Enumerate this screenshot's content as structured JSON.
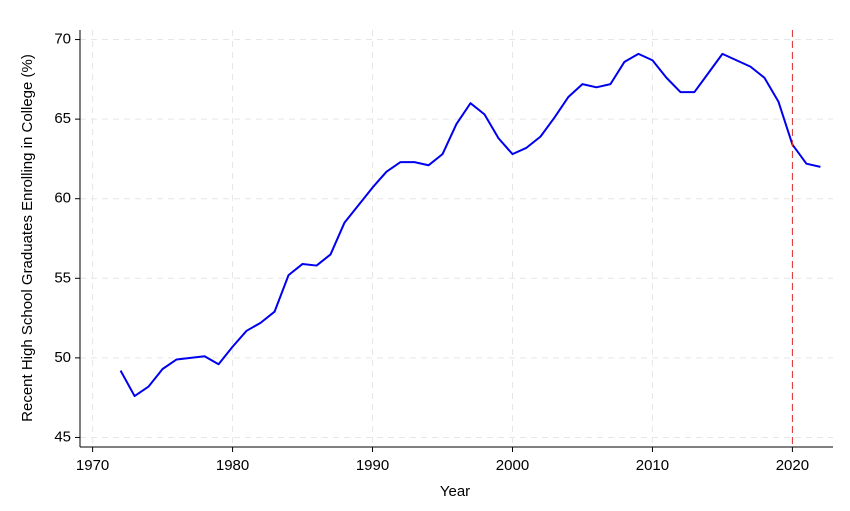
{
  "chart_data": {
    "type": "line",
    "x_label": "Year",
    "y_label": "Recent High School Graduates Enrolling in College (%)",
    "x": [
      1972,
      1973,
      1974,
      1975,
      1976,
      1977,
      1978,
      1979,
      1980,
      1981,
      1982,
      1983,
      1984,
      1985,
      1986,
      1987,
      1988,
      1989,
      1990,
      1991,
      1992,
      1993,
      1994,
      1995,
      1996,
      1997,
      1998,
      1999,
      2000,
      2001,
      2002,
      2003,
      2004,
      2005,
      2006,
      2007,
      2008,
      2009,
      2010,
      2011,
      2012,
      2013,
      2014,
      2015,
      2016,
      2017,
      2018,
      2019,
      2020,
      2021,
      2022
    ],
    "series": [
      {
        "color": "#0000ee",
        "values": [
          49.2,
          47.6,
          48.2,
          49.3,
          49.9,
          50.0,
          50.1,
          49.6,
          50.7,
          51.7,
          52.2,
          52.9,
          55.2,
          55.9,
          55.8,
          56.5,
          58.5,
          59.6,
          60.7,
          61.7,
          62.3,
          62.3,
          62.1,
          62.8,
          64.7,
          66.0,
          65.3,
          63.8,
          62.8,
          63.2,
          63.9,
          65.1,
          66.4,
          67.2,
          67.0,
          67.2,
          68.6,
          69.1,
          68.7,
          67.6,
          66.7,
          66.7,
          67.9,
          69.1,
          68.7,
          68.3,
          67.6,
          66.1,
          63.4,
          62.2,
          62.0
        ]
      }
    ],
    "vline": 2020,
    "vline_color": "#e03030",
    "xlim": [
      1969.1,
      2022.9
    ],
    "ylim": [
      44.4,
      70.6
    ],
    "xticks": [
      1970,
      1980,
      1990,
      2000,
      2010,
      2020
    ],
    "yticks": [
      45,
      50,
      55,
      60,
      65,
      70
    ],
    "grid": true
  }
}
